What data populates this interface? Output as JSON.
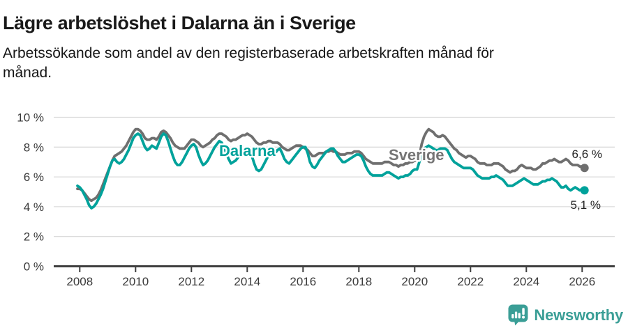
{
  "title": "Lägre arbetslöshet i Dalarna än i Sverige",
  "subtitle_lines": [
    "Arbetssökande som andel av den registerbaserade arbetskraften månad för",
    "månad."
  ],
  "branding": {
    "name": "Newsworthy",
    "color": "#3a9e96"
  },
  "colors": {
    "dalarna": "#00a29b",
    "sverige": "#6f6f6f",
    "grid": "#dbdbdb",
    "axis": "#3f3f3f",
    "tick_text": "#3a3a3a"
  },
  "chart_data": {
    "type": "line",
    "unit": "%",
    "frequency": "monthly",
    "x_start": "2007-12",
    "x_end": "2026-02",
    "ylim": [
      0,
      10
    ],
    "grid": true,
    "legend_position": "inline-labels",
    "y_tick_labels": [
      "0 %",
      "2 %",
      "4 %",
      "6 %",
      "8 %",
      "10 %"
    ],
    "x_tick_labels": [
      "2008",
      "2010",
      "2012",
      "2014",
      "2016",
      "2018",
      "2020",
      "2022",
      "2024",
      "2026"
    ],
    "series": [
      {
        "name": "Sverige",
        "color": "#6f6f6f",
        "end_label": "6,6 %",
        "end_value": 6.6,
        "values": [
          5.2,
          5.2,
          5.1,
          4.9,
          4.7,
          4.5,
          4.4,
          4.5,
          4.6,
          4.8,
          5.1,
          5.5,
          5.9,
          6.3,
          6.7,
          7.1,
          7.4,
          7.5,
          7.6,
          7.7,
          7.9,
          8.1,
          8.4,
          8.7,
          9.0,
          9.2,
          9.2,
          9.1,
          8.9,
          8.6,
          8.5,
          8.5,
          8.6,
          8.6,
          8.5,
          8.7,
          9.0,
          9.1,
          9.0,
          8.8,
          8.6,
          8.3,
          8.1,
          8.0,
          7.9,
          7.9,
          7.9,
          8.1,
          8.3,
          8.5,
          8.5,
          8.4,
          8.3,
          8.1,
          8.0,
          8.1,
          8.2,
          8.3,
          8.5,
          8.6,
          8.8,
          8.9,
          8.9,
          8.8,
          8.7,
          8.5,
          8.4,
          8.5,
          8.5,
          8.6,
          8.7,
          8.8,
          8.8,
          8.9,
          8.8,
          8.7,
          8.5,
          8.3,
          8.2,
          8.2,
          8.3,
          8.3,
          8.4,
          8.4,
          8.3,
          8.3,
          8.3,
          8.2,
          8.0,
          7.9,
          7.8,
          7.8,
          7.9,
          8.0,
          8.1,
          8.1,
          8.1,
          8.0,
          7.9,
          7.8,
          7.6,
          7.4,
          7.4,
          7.5,
          7.6,
          7.6,
          7.6,
          7.7,
          7.7,
          7.8,
          7.7,
          7.7,
          7.6,
          7.5,
          7.5,
          7.5,
          7.6,
          7.6,
          7.6,
          7.7,
          7.7,
          7.7,
          7.6,
          7.4,
          7.2,
          7.1,
          7.0,
          6.9,
          6.9,
          6.9,
          6.9,
          6.9,
          7.0,
          7.0,
          7.0,
          6.9,
          6.8,
          6.8,
          6.7,
          6.8,
          6.8,
          6.9,
          6.9,
          7.0,
          7.0,
          7.1,
          7.1,
          7.4,
          8.2,
          8.7,
          9.0,
          9.2,
          9.1,
          9.0,
          8.8,
          8.7,
          8.7,
          8.8,
          8.7,
          8.5,
          8.3,
          8.1,
          7.9,
          7.8,
          7.6,
          7.5,
          7.4,
          7.3,
          7.4,
          7.4,
          7.3,
          7.2,
          7.0,
          6.9,
          6.9,
          6.9,
          6.8,
          6.8,
          6.8,
          6.9,
          6.9,
          6.9,
          6.8,
          6.7,
          6.5,
          6.4,
          6.3,
          6.4,
          6.4,
          6.5,
          6.7,
          6.8,
          6.7,
          6.6,
          6.6,
          6.6,
          6.5,
          6.5,
          6.6,
          6.7,
          6.9,
          6.9,
          7.0,
          7.1,
          7.1,
          7.2,
          7.1,
          7.0,
          7.0,
          7.1,
          7.2,
          7.1,
          6.9,
          6.8,
          6.8,
          6.8,
          6.7,
          6.7,
          6.6
        ]
      },
      {
        "name": "Dalarna",
        "color": "#00a29b",
        "end_label": "5,1 %",
        "end_value": 5.1,
        "values": [
          5.4,
          5.3,
          5.1,
          4.8,
          4.5,
          4.1,
          3.9,
          4.0,
          4.2,
          4.5,
          4.8,
          5.2,
          5.7,
          6.2,
          6.7,
          7.1,
          7.2,
          7.0,
          6.9,
          7.0,
          7.2,
          7.5,
          7.8,
          8.2,
          8.6,
          8.8,
          8.9,
          8.8,
          8.4,
          8.0,
          7.8,
          7.9,
          8.1,
          8.0,
          7.9,
          8.3,
          8.7,
          8.9,
          8.8,
          8.4,
          7.9,
          7.4,
          7.0,
          6.8,
          6.8,
          7.0,
          7.3,
          7.6,
          7.9,
          8.1,
          8.2,
          8.0,
          7.5,
          7.1,
          6.8,
          6.9,
          7.1,
          7.4,
          7.7,
          8.0,
          8.2,
          8.4,
          8.3,
          8.0,
          7.6,
          7.2,
          6.9,
          7.0,
          7.1,
          7.3,
          7.5,
          7.7,
          7.8,
          7.9,
          7.8,
          7.4,
          6.9,
          6.5,
          6.4,
          6.5,
          6.8,
          7.1,
          7.4,
          7.5,
          7.4,
          7.6,
          7.8,
          7.9,
          7.6,
          7.2,
          7.0,
          6.9,
          7.1,
          7.3,
          7.5,
          7.7,
          7.9,
          8.0,
          8.0,
          7.6,
          7.0,
          6.7,
          6.6,
          6.8,
          7.1,
          7.3,
          7.5,
          7.7,
          7.8,
          7.9,
          7.9,
          7.7,
          7.4,
          7.2,
          7.0,
          7.0,
          7.1,
          7.2,
          7.3,
          7.4,
          7.5,
          7.5,
          7.4,
          7.1,
          6.7,
          6.4,
          6.2,
          6.1,
          6.1,
          6.1,
          6.1,
          6.1,
          6.2,
          6.3,
          6.3,
          6.2,
          6.1,
          6.0,
          5.9,
          6.0,
          6.0,
          6.1,
          6.1,
          6.2,
          6.4,
          6.5,
          6.5,
          7.0,
          7.6,
          7.9,
          8.0,
          8.1,
          8.0,
          7.9,
          7.8,
          7.8,
          7.9,
          7.9,
          7.9,
          7.8,
          7.5,
          7.2,
          7.0,
          6.9,
          6.8,
          6.7,
          6.6,
          6.6,
          6.6,
          6.6,
          6.5,
          6.3,
          6.1,
          6.0,
          5.9,
          5.9,
          5.9,
          5.9,
          6.0,
          6.0,
          6.1,
          6.0,
          5.9,
          5.8,
          5.6,
          5.4,
          5.4,
          5.4,
          5.5,
          5.6,
          5.7,
          5.8,
          5.9,
          5.8,
          5.7,
          5.6,
          5.5,
          5.5,
          5.5,
          5.6,
          5.7,
          5.7,
          5.8,
          5.8,
          5.9,
          5.8,
          5.7,
          5.5,
          5.3,
          5.3,
          5.4,
          5.2,
          5.1,
          5.2,
          5.3,
          5.2,
          5.1,
          5.2,
          5.1
        ]
      }
    ]
  }
}
